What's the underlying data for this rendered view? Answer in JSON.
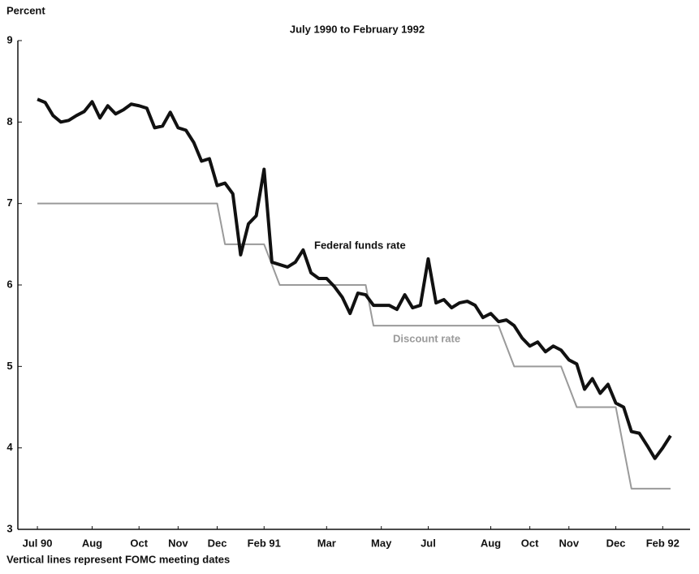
{
  "chart_data": {
    "type": "line",
    "title": "July 1990 to February 1992",
    "y_label": "Percent",
    "footnote": "Vertical lines represent FOMC meeting dates",
    "x": [
      0,
      1,
      2,
      3,
      4,
      5,
      6,
      7,
      8,
      9,
      10,
      11,
      12,
      13,
      14,
      15,
      16,
      17,
      18,
      19,
      20,
      21,
      22,
      23,
      24,
      25,
      26,
      27,
      28,
      29,
      30,
      31,
      32,
      33,
      34,
      35,
      36,
      37,
      38,
      39,
      40,
      41,
      42,
      43,
      44,
      45,
      46,
      47,
      48,
      49,
      50,
      51,
      52,
      53,
      54,
      55,
      56,
      57,
      58,
      59,
      60,
      61,
      62,
      63,
      64,
      65,
      66,
      67,
      68,
      69,
      70,
      71,
      72,
      73,
      74,
      75,
      76,
      77,
      78,
      79,
      80,
      81
    ],
    "series": [
      {
        "name": "Federal funds rate",
        "color": "#111111",
        "width": 4,
        "values": [
          8.28,
          8.24,
          8.08,
          8.0,
          8.02,
          8.08,
          8.13,
          8.25,
          8.05,
          8.2,
          8.1,
          8.15,
          8.22,
          8.2,
          8.17,
          7.93,
          7.95,
          8.12,
          7.93,
          7.9,
          7.75,
          7.52,
          7.55,
          7.22,
          7.25,
          7.12,
          6.37,
          6.75,
          6.85,
          7.42,
          6.28,
          6.25,
          6.22,
          6.28,
          6.43,
          6.15,
          6.08,
          6.08,
          5.98,
          5.85,
          5.65,
          5.9,
          5.88,
          5.75,
          5.75,
          5.75,
          5.7,
          5.88,
          5.72,
          5.75,
          6.32,
          5.78,
          5.82,
          5.72,
          5.78,
          5.8,
          5.75,
          5.6,
          5.65,
          5.55,
          5.57,
          5.5,
          5.35,
          5.25,
          5.3,
          5.18,
          5.25,
          5.2,
          5.08,
          5.03,
          4.72,
          4.85,
          4.67,
          4.78,
          4.55,
          4.5,
          4.2,
          4.18,
          4.03,
          3.87,
          4.0,
          4.15
        ]
      },
      {
        "name": "Discount rate",
        "color": "#9a9a9a",
        "width": 2,
        "values": [
          7,
          7,
          7,
          7,
          7,
          7,
          7,
          7,
          7,
          7,
          7,
          7,
          7,
          7,
          7,
          7,
          7,
          7,
          7,
          7,
          7,
          7,
          7,
          7,
          6.5,
          6.5,
          6.5,
          6.5,
          6.5,
          6.5,
          6.25,
          6,
          6,
          6,
          6,
          6,
          6,
          6,
          6,
          6,
          6,
          6,
          6,
          5.5,
          5.5,
          5.5,
          5.5,
          5.5,
          5.5,
          5.5,
          5.5,
          5.5,
          5.5,
          5.5,
          5.5,
          5.5,
          5.5,
          5.5,
          5.5,
          5.5,
          5.25,
          5,
          5,
          5,
          5,
          5,
          5,
          5,
          4.75,
          4.5,
          4.5,
          4.5,
          4.5,
          4.5,
          4.5,
          4,
          3.5,
          3.5,
          3.5,
          3.5,
          3.5,
          3.5
        ]
      }
    ],
    "xlim": [
      -2.5,
      83.5
    ],
    "xticks": [
      {
        "value": 0,
        "label": "Jul 90"
      },
      {
        "value": 7,
        "label": "Aug"
      },
      {
        "value": 13,
        "label": "Oct"
      },
      {
        "value": 18,
        "label": "Nov"
      },
      {
        "value": 23,
        "label": "Dec"
      },
      {
        "value": 29,
        "label": "Feb 91"
      },
      {
        "value": 37,
        "label": "Mar"
      },
      {
        "value": 44,
        "label": "May"
      },
      {
        "value": 50,
        "label": "Jul"
      },
      {
        "value": 58,
        "label": "Aug"
      },
      {
        "value": 63,
        "label": "Oct"
      },
      {
        "value": 68,
        "label": "Nov"
      },
      {
        "value": 74,
        "label": "Dec"
      },
      {
        "value": 80,
        "label": "Feb 92"
      }
    ],
    "ylim": [
      3,
      9
    ],
    "yticks": [
      3,
      4,
      5,
      6,
      7,
      8,
      9
    ],
    "grid": false
  }
}
